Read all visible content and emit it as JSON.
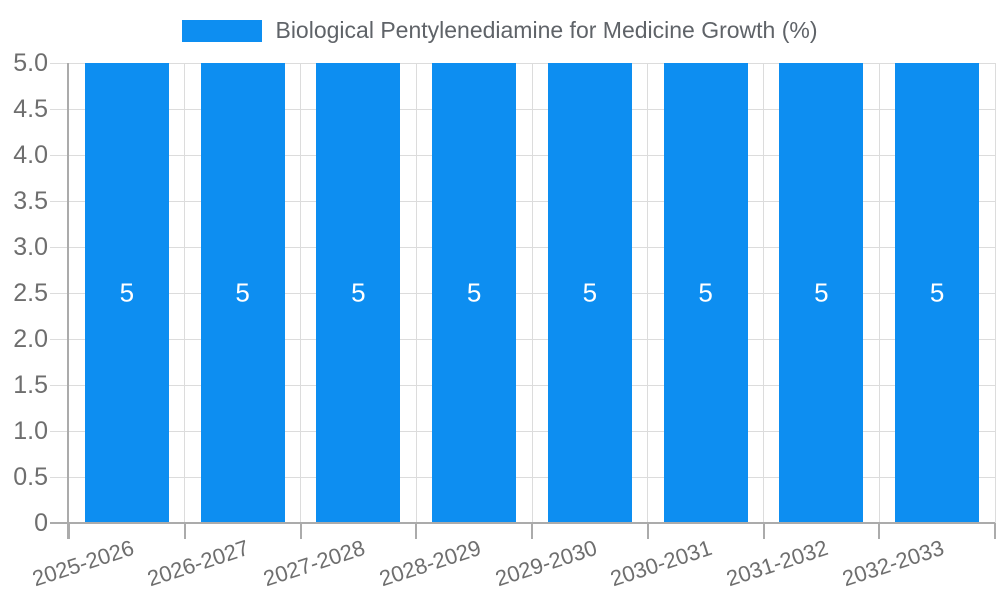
{
  "legend": {
    "label": "Biological Pentylenediamine for Medicine Growth (%)",
    "swatch_color": "#0d8ef1"
  },
  "chart_data": {
    "type": "bar",
    "title": "Biological Pentylenediamine for Medicine Growth (%)",
    "categories": [
      "2025-2026",
      "2026-2027",
      "2027-2028",
      "2028-2029",
      "2029-2030",
      "2030-2031",
      "2031-2032",
      "2032-2033"
    ],
    "values": [
      5,
      5,
      5,
      5,
      5,
      5,
      5,
      5
    ],
    "bar_labels": [
      "5",
      "5",
      "5",
      "5",
      "5",
      "5",
      "5",
      "5"
    ],
    "xlabel": "",
    "ylabel": "",
    "ylim": [
      0,
      5
    ],
    "ytick_step": 0.5,
    "ytick_labels": [
      "5.0",
      "4.5",
      "4.0",
      "3.5",
      "3.0",
      "2.5",
      "2.0",
      "1.5",
      "1.0",
      "0.5",
      "0"
    ],
    "grid": true,
    "legend_position": "top-center",
    "bar_label_position": "inside-middle",
    "colors": {
      "bar": "#0d8ef1",
      "bar_label": "#ffffff",
      "grid": "#dcdcdc",
      "axis": "#ababab",
      "tick_label": "#6e6e6e",
      "legend_text": "#5f6368",
      "background": "#ffffff"
    }
  }
}
